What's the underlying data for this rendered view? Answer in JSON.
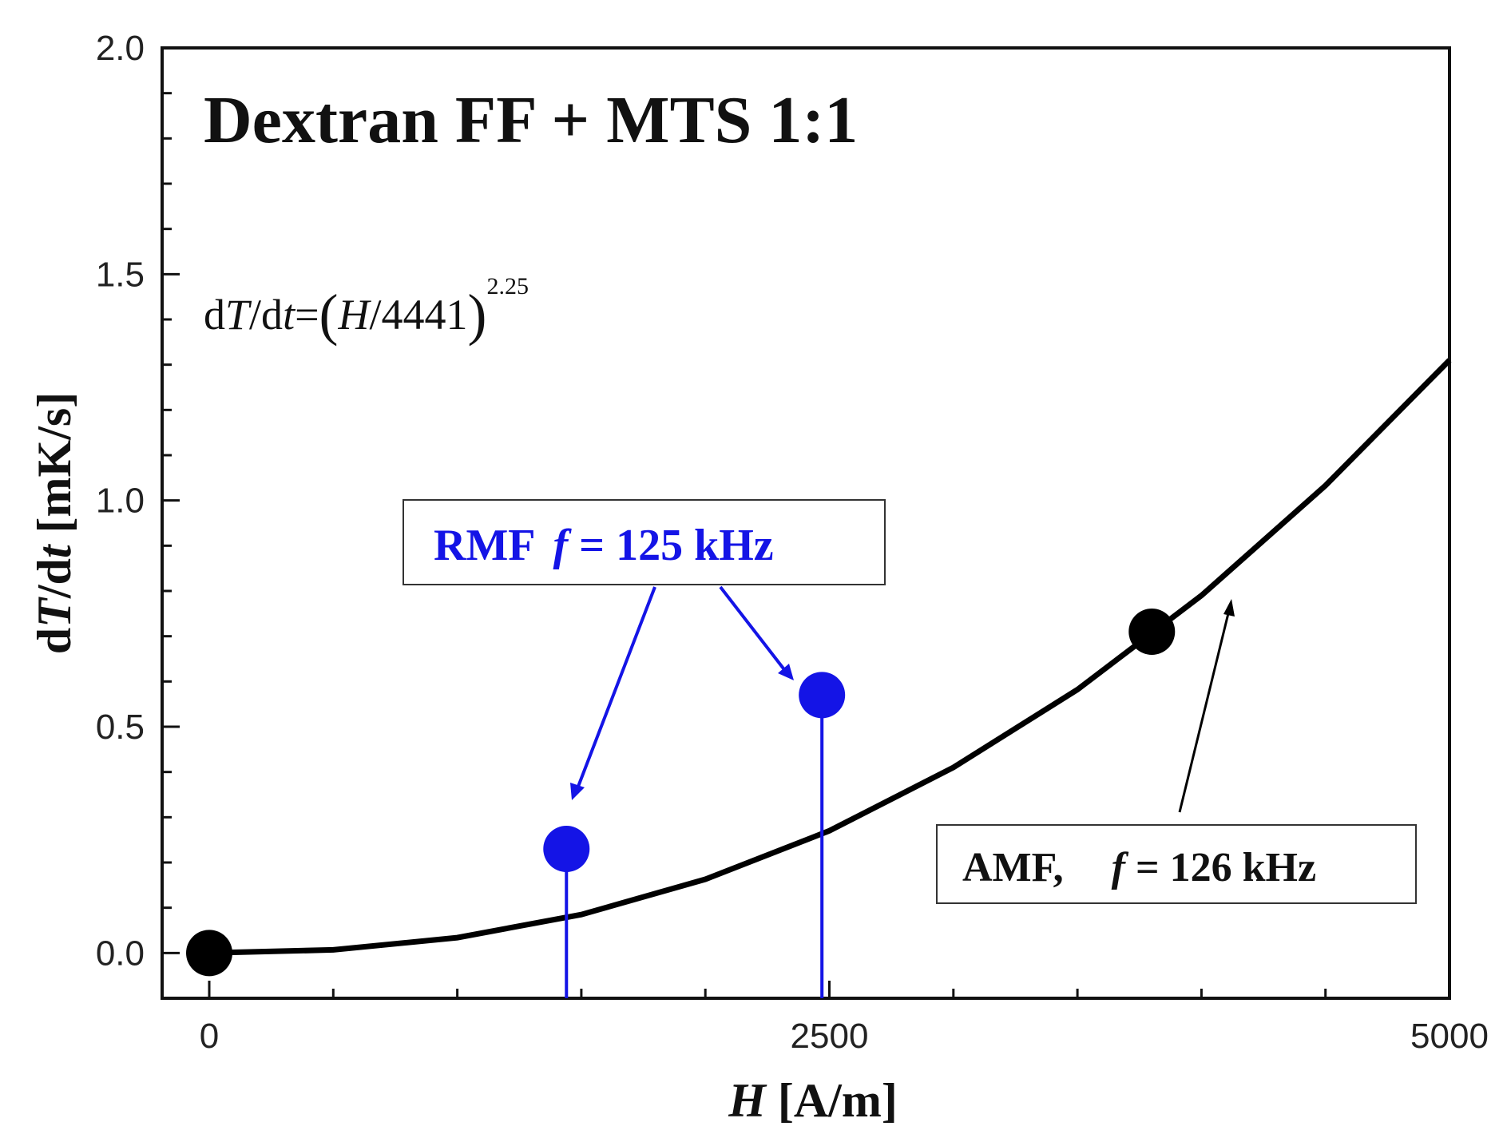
{
  "chart_data": {
    "type": "scatter",
    "title": "Dextran FF + MTS 1:1",
    "xlabel": "H [A/m]",
    "ylabel": "dT/dt [mK/s]",
    "xlim": [
      -190,
      5000
    ],
    "ylim": [
      -0.1,
      2.0
    ],
    "x_ticks": [
      0,
      2500,
      5000
    ],
    "x_tick_labels": [
      "0",
      "2500",
      "5000"
    ],
    "y_ticks": [
      0.0,
      0.5,
      1.0,
      1.5,
      2.0
    ],
    "y_tick_labels": [
      "0.0",
      "0.5",
      "1.0",
      "1.5",
      "2.0"
    ],
    "grid": false,
    "fit_equation": "dT/dt=(H/4441)^2.25",
    "fit_equation_parts": {
      "d1": "d",
      "T": "T",
      "slash_d": "/d",
      "t": "t",
      "eq": "=",
      "open": "(",
      "H": "H",
      "div": "/4441",
      "close": ")",
      "exponent": "2.25"
    },
    "series": [
      {
        "kind": "curve",
        "color": "#000000",
        "x": [
          0,
          500,
          1000,
          1500,
          2000,
          2500,
          3000,
          3500,
          4000,
          4500,
          5000
        ],
        "y": [
          0.0,
          0.007,
          0.034,
          0.085,
          0.163,
          0.27,
          0.41,
          0.582,
          0.79,
          1.033,
          1.31
        ]
      },
      {
        "kind": "points",
        "color": "#000000",
        "x": [
          0,
          3800
        ],
        "y": [
          0.0,
          0.71
        ]
      },
      {
        "kind": "stem-points",
        "color": "#1414e6",
        "x": [
          1440,
          2470
        ],
        "y": [
          0.23,
          0.57
        ]
      }
    ],
    "annotations": [
      {
        "id": "rmf",
        "text": "RMF  f = 125 kHz",
        "prefix": "RMF",
        "f": "f",
        "rest": " = 125 kHz",
        "color": "#1414e6"
      },
      {
        "id": "amf",
        "text": "AMF,   f = 126 kHz",
        "prefix": "AMF,",
        "f": "f",
        "rest": " = 126 kHz",
        "color": "#000000"
      }
    ],
    "axis_label_parts": {
      "x": {
        "var": "H",
        "unit": " [A/m]"
      },
      "y": {
        "d1": "d",
        "T": "T",
        "mid": "/d",
        "t": "t",
        "unit": " [mK/s]"
      }
    }
  }
}
